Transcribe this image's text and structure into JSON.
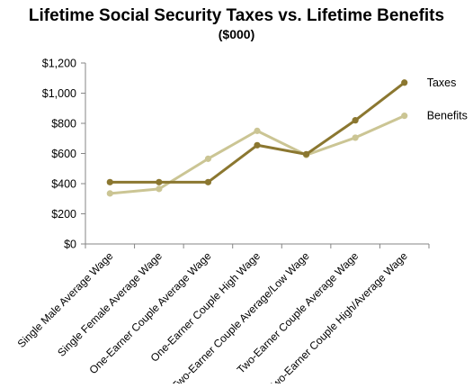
{
  "chart_data": {
    "type": "line",
    "title": "Lifetime Social Security Taxes vs. Lifetime Benefits",
    "subtitle": "($000)",
    "xlabel": "",
    "ylabel": "",
    "categories": [
      "Single Male Average Wage",
      "Single Female Average Wage",
      "One-Earner Couple Average Wage",
      "One-Earner Couple High Wage",
      "Two-Earner Couple Average/Low Wage",
      "Two-Earner Couple Average Wage",
      "Two-Earner Couple High/Average Wage"
    ],
    "series": [
      {
        "name": "Taxes",
        "values": [
          410,
          410,
          410,
          655,
          595,
          820,
          1070
        ],
        "color": "#8b7730"
      },
      {
        "name": "Benefits",
        "values": [
          335,
          365,
          565,
          750,
          590,
          705,
          850
        ],
        "color": "#cbc594"
      }
    ],
    "ylim": [
      0,
      1200
    ],
    "yticks": [
      "$0",
      "$200",
      "$400",
      "$600",
      "$800",
      "$1,000",
      "$1,200"
    ],
    "grid": false,
    "legend": "inline-right"
  }
}
